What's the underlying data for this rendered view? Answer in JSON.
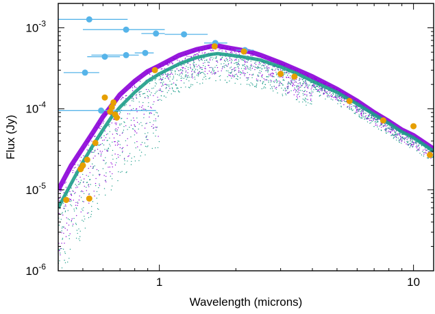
{
  "chart_data": {
    "type": "scatter",
    "title": "",
    "xlabel": "Wavelength (microns)",
    "ylabel": "Flux (Jy)",
    "x_scale": "log",
    "y_scale": "log",
    "xlim": [
      0.4,
      12
    ],
    "ylim": [
      1e-06,
      0.002
    ],
    "x_ticks": [
      {
        "value": 1,
        "label": "1"
      },
      {
        "value": 10,
        "label": "10"
      }
    ],
    "y_ticks": [
      {
        "value": 1e-06,
        "base": "10",
        "exp": "-6"
      },
      {
        "value": 1e-05,
        "base": "10",
        "exp": "-5"
      },
      {
        "value": 0.0001,
        "base": "10",
        "exp": "-4"
      },
      {
        "value": 0.001,
        "base": "10",
        "exp": "-3"
      }
    ],
    "grid": false,
    "legend": "none",
    "colors": {
      "model_a": "#8B00D8",
      "model_b": "#1E9E8A",
      "model_c": "#4A2E8C",
      "blue_points": "#56B4E9",
      "orange_points": "#E69F00"
    },
    "model_spectra": [
      {
        "color_key": "model_a",
        "wavelength": [
          0.4,
          0.45,
          0.5,
          0.55,
          0.6,
          0.65,
          0.7,
          0.8,
          0.9,
          1.0,
          1.2,
          1.4,
          1.6,
          1.7,
          1.9,
          2.1,
          2.3,
          2.5,
          3.0,
          3.5,
          4.0,
          5.0,
          6.0,
          7.0,
          8.0,
          9.0,
          10.0,
          12.0
        ],
        "flux": [
          1e-05,
          2e-05,
          3.3e-05,
          5.2e-05,
          8e-05,
          0.00011,
          0.00015,
          0.00022,
          0.00029,
          0.00034,
          0.00046,
          0.00054,
          0.00059,
          0.0006,
          0.00056,
          0.00053,
          0.0005,
          0.00046,
          0.00037,
          0.0003,
          0.00025,
          0.000175,
          0.000125,
          9e-05,
          7e-05,
          5.5e-05,
          4.7e-05,
          3.2e-05
        ]
      },
      {
        "color_key": "model_b",
        "wavelength": [
          0.4,
          0.45,
          0.5,
          0.55,
          0.6,
          0.65,
          0.7,
          0.8,
          0.9,
          1.0,
          1.2,
          1.4,
          1.6,
          1.7,
          1.9,
          2.1,
          2.3,
          2.5,
          3.0,
          3.5,
          4.0,
          5.0,
          6.0,
          7.0,
          8.0,
          9.0,
          10.0,
          12.0
        ],
        "flux": [
          6e-06,
          1.2e-05,
          2.2e-05,
          3.6e-05,
          5.5e-05,
          8e-05,
          0.000105,
          0.00016,
          0.00022,
          0.00027,
          0.00036,
          0.00043,
          0.00047,
          0.00048,
          0.00046,
          0.00044,
          0.00042,
          0.0004,
          0.00033,
          0.00027,
          0.00022,
          0.00016,
          0.000115,
          8.5e-05,
          6.6e-05,
          5.2e-05,
          4.4e-05,
          3e-05
        ]
      }
    ],
    "photometry_blue": [
      {
        "x": 0.53,
        "y": 0.00127,
        "xerr": [
          0.4,
          0.75
        ]
      },
      {
        "x": 0.74,
        "y": 0.00095,
        "xerr": [
          0.5,
          1.05
        ]
      },
      {
        "x": 0.97,
        "y": 0.00085,
        "xerr": [
          0.85,
          1.05
        ]
      },
      {
        "x": 1.25,
        "y": 0.00083,
        "xerr": [
          1.05,
          1.55
        ]
      },
      {
        "x": 0.61,
        "y": 0.00044,
        "xerr": [
          0.52,
          0.7
        ]
      },
      {
        "x": 0.74,
        "y": 0.00046,
        "xerr": [
          0.54,
          0.83
        ]
      },
      {
        "x": 0.88,
        "y": 0.00049,
        "xerr": [
          0.8,
          0.95
        ]
      },
      {
        "x": 0.51,
        "y": 0.00028,
        "xerr": [
          0.42,
          0.58
        ]
      },
      {
        "x": 0.59,
        "y": 9.5e-05,
        "xerr": [
          0.4,
          0.97
        ]
      },
      {
        "x": 1.66,
        "y": 0.00065,
        "xerr": [
          1.5,
          1.85
        ]
      },
      {
        "x": 2.17,
        "y": 0.00053,
        "xerr": [
          2.0,
          2.35
        ]
      }
    ],
    "photometry_orange": [
      {
        "x": 0.43,
        "y": 7.5e-06
      },
      {
        "x": 0.49,
        "y": 1.8e-05
      },
      {
        "x": 0.5,
        "y": 2e-05
      },
      {
        "x": 0.52,
        "y": 2.35e-05
      },
      {
        "x": 0.53,
        "y": 7.8e-06
      },
      {
        "x": 0.56,
        "y": 3.8e-05
      },
      {
        "x": 0.61,
        "y": 0.000138
      },
      {
        "x": 0.64,
        "y": 9.2e-05
      },
      {
        "x": 0.65,
        "y": 0.000105
      },
      {
        "x": 0.66,
        "y": 0.00012
      },
      {
        "x": 0.67,
        "y": 8.5e-05
      },
      {
        "x": 0.68,
        "y": 7.8e-05
      },
      {
        "x": 0.96,
        "y": 0.0003
      },
      {
        "x": 1.65,
        "y": 0.00059
      },
      {
        "x": 2.15,
        "y": 0.00051
      },
      {
        "x": 3.0,
        "y": 0.00027
      },
      {
        "x": 3.4,
        "y": 0.00025
      },
      {
        "x": 5.6,
        "y": 0.000125
      },
      {
        "x": 7.6,
        "y": 7.2e-05
      },
      {
        "x": 10.0,
        "y": 6.1e-05
      },
      {
        "x": 11.6,
        "y": 2.7e-05
      }
    ]
  }
}
